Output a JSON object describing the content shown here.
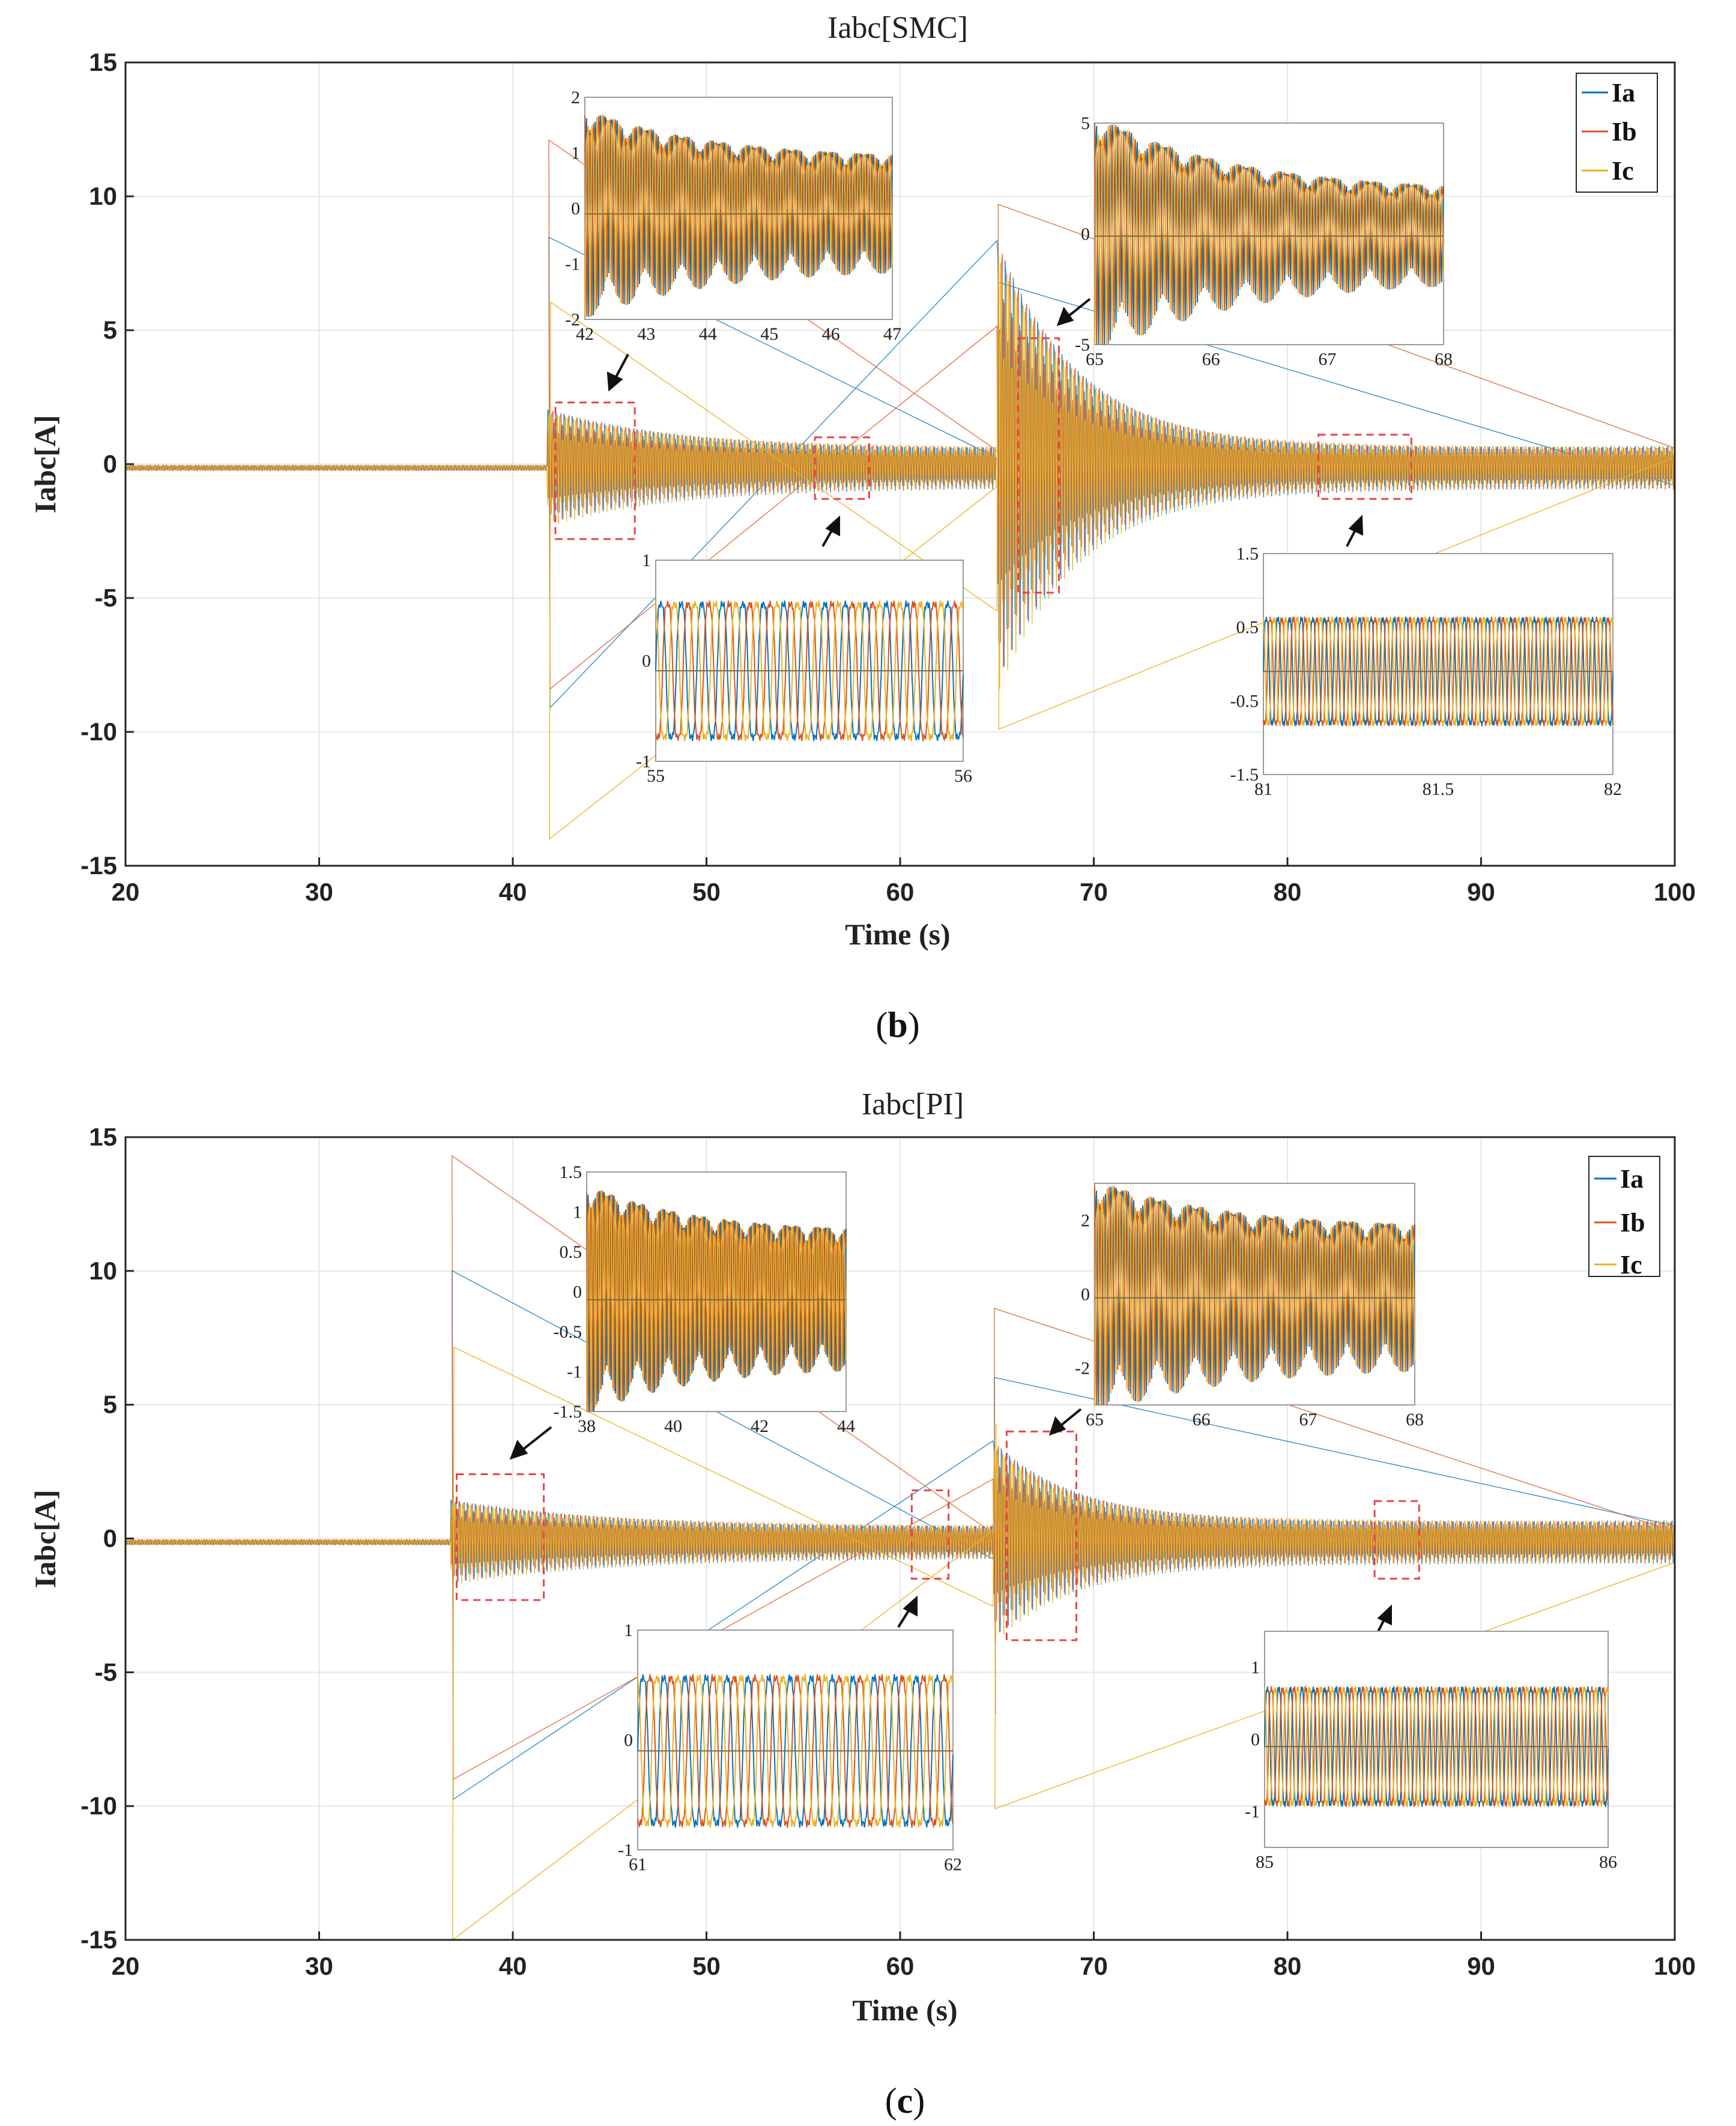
{
  "colors": {
    "Ia": "#0072BD",
    "Ib": "#D95319",
    "Ic": "#EDB120",
    "highlight": "#e8434a",
    "grid": "#e6e6e6"
  },
  "chart_data": [
    {
      "type": "line",
      "panel": "b",
      "caption": {
        "open": "(",
        "letter": "b",
        "close": ")"
      },
      "title": "Iabc[SMC]",
      "xlabel": "Time (s)",
      "ylabel": "Iabc[A]",
      "xlim": [
        20,
        100
      ],
      "ylim": [
        -15,
        15
      ],
      "xticks": [
        20,
        30,
        40,
        50,
        60,
        70,
        80,
        90,
        100
      ],
      "yticks": [
        15,
        10,
        5,
        0,
        -5,
        -10,
        -15
      ],
      "series": [
        {
          "name": "Ia",
          "description": "phase A current"
        },
        {
          "name": "Ib",
          "description": "phase B current"
        },
        {
          "name": "Ic",
          "description": "phase C current"
        }
      ],
      "segments": [
        {
          "t": [
            20,
            41.8
          ],
          "amp_start": 0.1,
          "amp_end": 0.1
        },
        {
          "t": [
            41.8,
            65
          ],
          "amp_start": 2.2,
          "amp_end": 0.75,
          "spike_max": 12.1,
          "spike_min": -14
        },
        {
          "t": [
            65,
            100
          ],
          "amp_start": 8.5,
          "amp_end": 0.8,
          "spike_max": 9.7,
          "spike_min": -9.9
        }
      ],
      "highlight_boxes": [
        {
          "t": [
            42.2,
            46.3
          ],
          "y": [
            -2.8,
            2.3
          ]
        },
        {
          "t": [
            55.6,
            58.4
          ],
          "y": [
            -1.3,
            1.0
          ]
        },
        {
          "t": [
            66.1,
            68.2
          ],
          "y": [
            -4.8,
            4.7
          ]
        },
        {
          "t": [
            81.6,
            86.4
          ],
          "y": [
            -1.3,
            1.1
          ]
        }
      ],
      "insets": [
        {
          "xticks": [
            "42",
            "43",
            "44",
            "45",
            "46",
            "47"
          ],
          "yticks": [
            "2",
            "1",
            "0",
            "-1",
            "-2"
          ],
          "ymax": 2,
          "ymin": -2,
          "mode": "dense",
          "amp_start": 1.9,
          "amp_end": 1.0
        },
        {
          "xticks": [
            "55",
            "56"
          ],
          "yticks": [
            "1",
            "0",
            "-1"
          ],
          "ymax": 1,
          "ymin": -1,
          "mode": "clean",
          "amp": 0.75,
          "cycles": 15
        },
        {
          "xticks": [
            "65",
            "66",
            "67",
            "68"
          ],
          "yticks": [
            "5",
            "0",
            "-5"
          ],
          "ymax": 5,
          "ymin": -5,
          "mode": "dense",
          "amp_start": 5.5,
          "amp_end": 2.0
        },
        {
          "xticks": [
            "81",
            "81.5",
            "82"
          ],
          "yticks": [
            "1.5",
            "0.5",
            "-0.5",
            "-1.5"
          ],
          "ymax": 1.5,
          "ymin": -1.5,
          "mode": "clean",
          "amp": 0.8,
          "cycles": 30
        }
      ]
    },
    {
      "type": "line",
      "panel": "c",
      "caption": {
        "open": "(",
        "letter": "c",
        "close": ")"
      },
      "title": "Iabc[PI]",
      "xlabel": "Time (s)",
      "ylabel": "Iabc[A]",
      "xlim": [
        20,
        100
      ],
      "ylim": [
        -15,
        15
      ],
      "xticks": [
        20,
        30,
        40,
        50,
        60,
        70,
        80,
        90,
        100
      ],
      "yticks": [
        15,
        10,
        5,
        0,
        -5,
        -10,
        -15
      ],
      "series": [
        {
          "name": "Ia",
          "description": "phase A current"
        },
        {
          "name": "Ib",
          "description": "phase B current"
        },
        {
          "name": "Ic",
          "description": "phase C current"
        }
      ],
      "segments": [
        {
          "t": [
            20,
            36.8
          ],
          "amp_start": 0.1,
          "amp_end": 0.1
        },
        {
          "t": [
            36.8,
            64.8
          ],
          "amp_start": 1.6,
          "amp_end": 0.6,
          "spike_max": 14.3,
          "spike_min": -15
        },
        {
          "t": [
            64.8,
            100
          ],
          "amp_start": 3.8,
          "amp_end": 0.8,
          "spike_max": 8.6,
          "spike_min": -10.1
        }
      ],
      "highlight_boxes": [
        {
          "t": [
            37.1,
            41.6
          ],
          "y": [
            -2.3,
            2.4
          ]
        },
        {
          "t": [
            60.6,
            62.5
          ],
          "y": [
            -1.5,
            1.8
          ]
        },
        {
          "t": [
            65.5,
            69.1
          ],
          "y": [
            -3.8,
            4.0
          ]
        },
        {
          "t": [
            84.5,
            86.8
          ],
          "y": [
            -1.5,
            1.4
          ]
        }
      ],
      "insets": [
        {
          "xticks": [
            "38",
            "40",
            "42",
            "44"
          ],
          "yticks": [
            "1.5",
            "1",
            "0.5",
            "0",
            "-0.5",
            "-1",
            "-1.5"
          ],
          "ymax": 1.5,
          "ymin": -1.5,
          "mode": "dense",
          "amp_start": 1.45,
          "amp_end": 0.85
        },
        {
          "xticks": [
            "61",
            "62"
          ],
          "yticks": [
            "1",
            "0",
            "-1"
          ],
          "ymax": 1,
          "ymin": -1,
          "mode": "clean",
          "amp": 0.75,
          "cycles": 15
        },
        {
          "xticks": [
            "65",
            "66",
            "67",
            "68"
          ],
          "yticks": [
            "2",
            "0",
            "-2"
          ],
          "ymax": 3,
          "ymin": -3,
          "mode": "dense",
          "amp_start": 3.2,
          "amp_end": 1.9
        },
        {
          "xticks": [
            "85",
            "86"
          ],
          "yticks": [
            "1",
            "0",
            "-1"
          ],
          "ymax": 1.5,
          "ymin": -1.5,
          "mode": "clean",
          "amp": 0.9,
          "cycles": 30
        }
      ]
    }
  ]
}
